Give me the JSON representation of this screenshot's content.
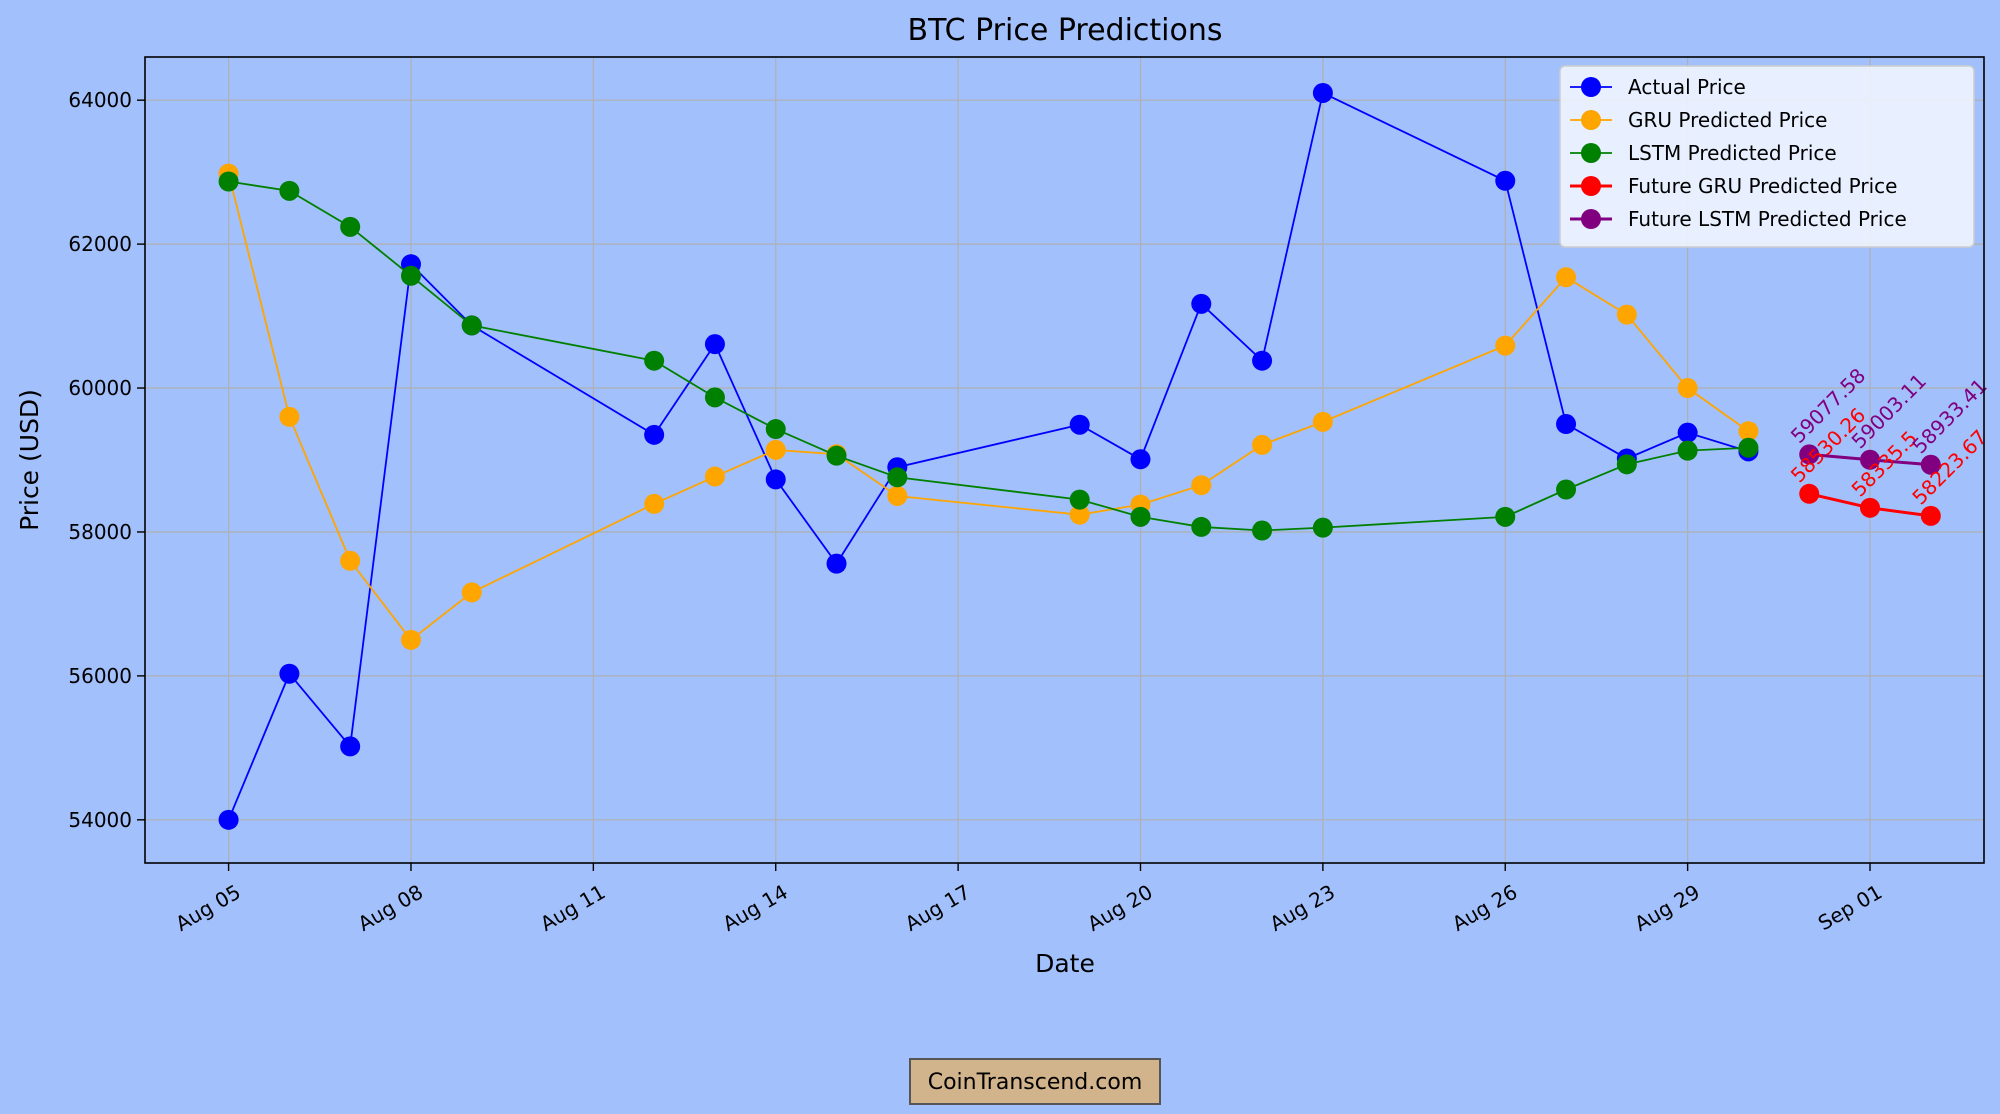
{
  "chart_data": {
    "type": "line",
    "title": "BTC Price Predictions",
    "xlabel": "Date",
    "ylabel": "Price (USD)",
    "xlim": [
      "2024-08-03 15:00",
      "2024-09-02 21:00"
    ],
    "ylim": [
      53400,
      64600
    ],
    "x_ticks": [
      {
        "date": "2024-08-05",
        "label": "Aug 05"
      },
      {
        "date": "2024-08-08",
        "label": "Aug 08"
      },
      {
        "date": "2024-08-11",
        "label": "Aug 11"
      },
      {
        "date": "2024-08-14",
        "label": "Aug 14"
      },
      {
        "date": "2024-08-17",
        "label": "Aug 17"
      },
      {
        "date": "2024-08-20",
        "label": "Aug 20"
      },
      {
        "date": "2024-08-23",
        "label": "Aug 23"
      },
      {
        "date": "2024-08-26",
        "label": "Aug 26"
      },
      {
        "date": "2024-08-29",
        "label": "Aug 29"
      },
      {
        "date": "2024-09-01",
        "label": "Sep 01"
      }
    ],
    "y_ticks": [
      {
        "value": 54000,
        "label": "54000"
      },
      {
        "value": 56000,
        "label": "56000"
      },
      {
        "value": 58000,
        "label": "58000"
      },
      {
        "value": 60000,
        "label": "60000"
      },
      {
        "value": 62000,
        "label": "62000"
      },
      {
        "value": 64000,
        "label": "64000"
      }
    ],
    "grid": true,
    "legend_position": "top-right",
    "series": [
      {
        "name": "Actual Price",
        "color": "#0000ff",
        "x": [
          "2024-08-05",
          "2024-08-06",
          "2024-08-07",
          "2024-08-08",
          "2024-08-09",
          "2024-08-12",
          "2024-08-13",
          "2024-08-14",
          "2024-08-15",
          "2024-08-16",
          "2024-08-19",
          "2024-08-20",
          "2024-08-21",
          "2024-08-22",
          "2024-08-23",
          "2024-08-26",
          "2024-08-27",
          "2024-08-28",
          "2024-08-29",
          "2024-08-30"
        ],
        "y": [
          54000,
          56030,
          55020,
          61720,
          60870,
          59350,
          60610,
          58730,
          57560,
          58900,
          59490,
          59010,
          61170,
          60380,
          64100,
          62880,
          59500,
          59020,
          59380,
          59120
        ]
      },
      {
        "name": "GRU Predicted Price",
        "color": "#ffa500",
        "x": [
          "2024-08-05",
          "2024-08-06",
          "2024-08-07",
          "2024-08-08",
          "2024-08-09",
          "2024-08-12",
          "2024-08-13",
          "2024-08-14",
          "2024-08-15",
          "2024-08-16",
          "2024-08-19",
          "2024-08-20",
          "2024-08-21",
          "2024-08-22",
          "2024-08-23",
          "2024-08-26",
          "2024-08-27",
          "2024-08-28",
          "2024-08-29",
          "2024-08-30"
        ],
        "y": [
          62980,
          59600,
          57600,
          56500,
          57160,
          58390,
          58770,
          59140,
          59080,
          58500,
          58240,
          58380,
          58650,
          59210,
          59530,
          60590,
          61540,
          61020,
          60000,
          59400
        ]
      },
      {
        "name": "LSTM Predicted Price",
        "color": "#008000",
        "x": [
          "2024-08-05",
          "2024-08-06",
          "2024-08-07",
          "2024-08-08",
          "2024-08-09",
          "2024-08-12",
          "2024-08-13",
          "2024-08-14",
          "2024-08-15",
          "2024-08-16",
          "2024-08-19",
          "2024-08-20",
          "2024-08-21",
          "2024-08-22",
          "2024-08-23",
          "2024-08-26",
          "2024-08-27",
          "2024-08-28",
          "2024-08-29",
          "2024-08-30"
        ],
        "y": [
          62870,
          62740,
          62240,
          61560,
          60870,
          60380,
          59870,
          59430,
          59060,
          58760,
          58450,
          58210,
          58070,
          58020,
          58060,
          58210,
          58590,
          58940,
          59130,
          59170
        ]
      },
      {
        "name": "Future GRU Predicted Price",
        "color": "#ff0000",
        "x": [
          "2024-08-31",
          "2024-09-01",
          "2024-09-02"
        ],
        "y": [
          58530.26,
          58335.5,
          58223.67
        ],
        "labels": [
          "58530.26",
          "58335.5",
          "58223.67"
        ]
      },
      {
        "name": "Future LSTM Predicted Price",
        "color": "#800080",
        "x": [
          "2024-08-31",
          "2024-09-01",
          "2024-09-02"
        ],
        "y": [
          59077.58,
          59003.11,
          58933.41
        ],
        "labels": [
          "59077.58",
          "59003.11",
          "58933.41"
        ]
      }
    ]
  },
  "watermark": {
    "text": "CoinTranscend.com"
  },
  "colors": {
    "figure_background": "#a2c0fc",
    "grid": "#b0b0b0",
    "watermark_box": "#d2b48c"
  }
}
